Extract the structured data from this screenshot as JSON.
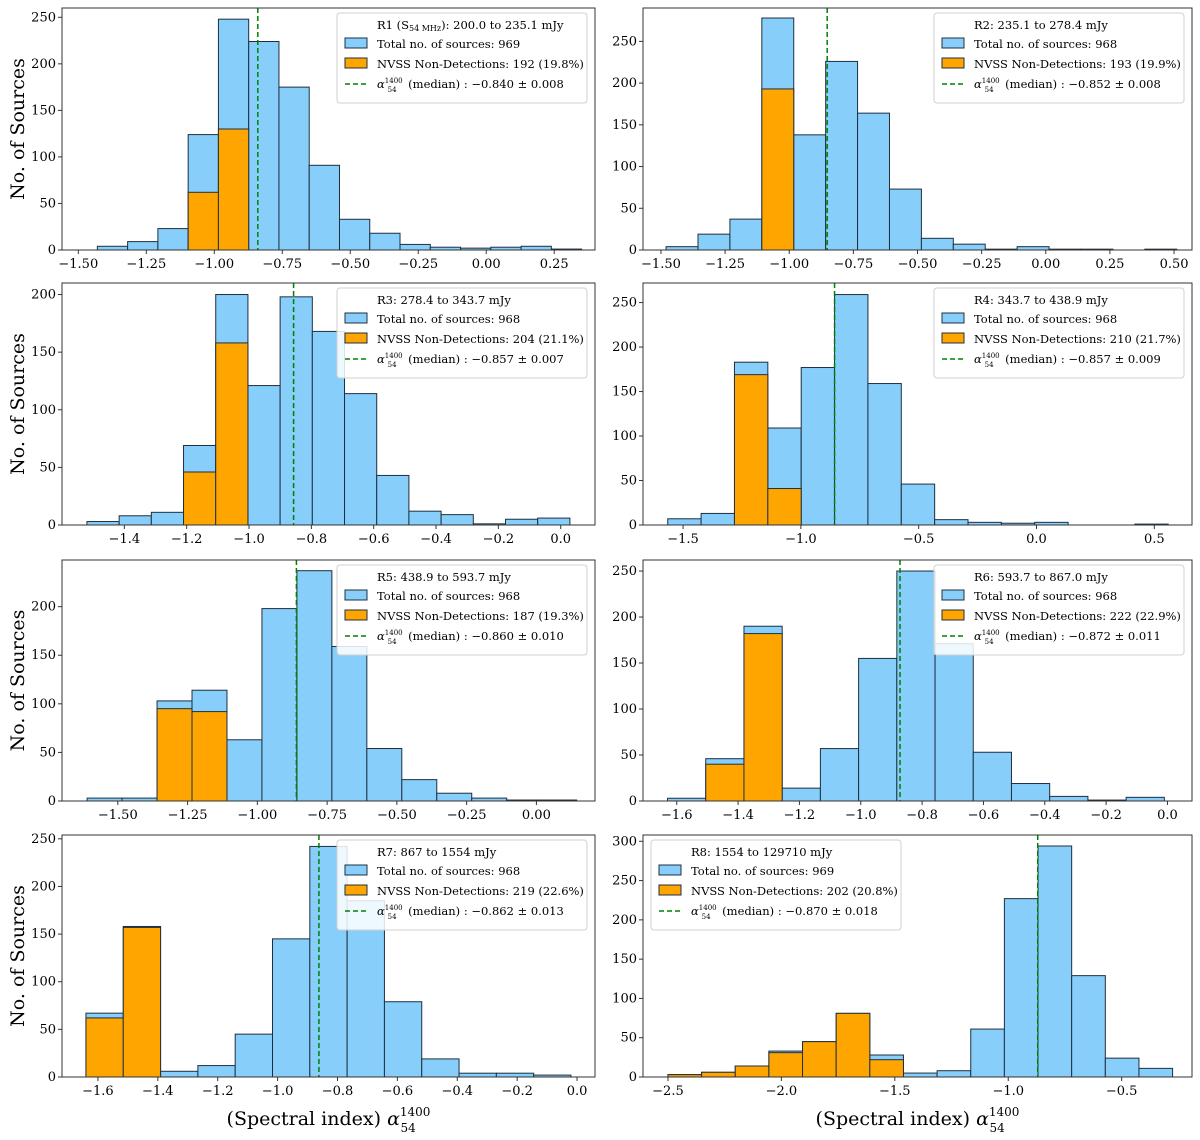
{
  "figure": {
    "ylabel": "No. of Sources",
    "xlabel_main": "(Spectral index) ",
    "xlabel_symbol": "α",
    "xlabel_sup": "1400",
    "xlabel_sub": "54"
  },
  "colors": {
    "total": "#87CEFA",
    "nondetect": "#FFA500",
    "median": "#008000",
    "edge": "#1f2f3f"
  },
  "chart_data": [
    {
      "type": "bar",
      "panel": "R1",
      "title": "R1 (S54 MHz): 200.0 to 235.1 mJy",
      "legend": {
        "title_main": "R1 (S",
        "title_sub": "54 MHz",
        "title_rest": "): 200.0 to 235.1 mJy",
        "total": "Total no. of sources: 969",
        "nondetect": "NVSS Non-Detections: 192 (19.8%)",
        "median_rest": " (median) : −0.840 ± 0.008",
        "position": "top-right"
      },
      "xlim": [
        -1.56,
        0.4
      ],
      "ylim": [
        0,
        260
      ],
      "xticks": [
        -1.5,
        -1.25,
        -1.0,
        -0.75,
        -0.5,
        -0.25,
        0.0,
        0.25
      ],
      "xtick_labels": [
        "−1.50",
        "−1.25",
        "−1.00",
        "−0.75",
        "−0.50",
        "−0.25",
        "0.00",
        "0.25"
      ],
      "yticks": [
        0,
        50,
        100,
        150,
        200,
        250
      ],
      "bin_start": -1.43,
      "bin_width": 0.1113,
      "total": [
        4,
        9,
        23,
        124,
        248,
        224,
        175,
        91,
        33,
        18,
        6,
        3,
        2,
        3,
        4,
        1
      ],
      "nondetect": [
        0,
        0,
        0,
        62,
        130,
        0,
        0,
        0,
        0,
        0,
        0,
        0,
        0,
        0,
        0,
        0
      ],
      "median": -0.84,
      "median_err": 0.008,
      "n_total": 969,
      "n_nondetect": 192,
      "pct_nondetect": 19.8
    },
    {
      "type": "bar",
      "panel": "R2",
      "title": "R2: 235.1 to 278.4 mJy",
      "legend": {
        "title_main": "R2: 235.1 to 278.4 mJy",
        "title_sub": "",
        "title_rest": "",
        "total": "Total no. of sources: 968",
        "nondetect": "NVSS Non-Detections: 193 (19.9%)",
        "median_rest": " (median) : −0.852 ± 0.008",
        "position": "top-right"
      },
      "xlim": [
        -1.57,
        0.57
      ],
      "ylim": [
        0,
        290
      ],
      "xticks": [
        -1.5,
        -1.25,
        -1.0,
        -0.75,
        -0.5,
        -0.25,
        0.0,
        0.25,
        0.5
      ],
      "xtick_labels": [
        "−1.50",
        "−1.25",
        "−1.00",
        "−0.75",
        "−0.50",
        "−0.25",
        "0.00",
        "0.25",
        "0.50"
      ],
      "yticks": [
        0,
        50,
        100,
        150,
        200,
        250
      ],
      "bin_start": -1.48,
      "bin_width": 0.1244,
      "total": [
        4,
        19,
        37,
        278,
        138,
        226,
        164,
        73,
        14,
        7,
        1,
        4,
        1,
        1,
        0,
        1
      ],
      "nondetect": [
        0,
        0,
        0,
        193,
        0,
        0,
        0,
        0,
        0,
        0,
        0,
        0,
        0,
        0,
        0,
        0
      ],
      "median": -0.852,
      "median_err": 0.008,
      "n_total": 968,
      "n_nondetect": 193,
      "pct_nondetect": 19.9
    },
    {
      "type": "bar",
      "panel": "R3",
      "title": "R3: 278.4 to 343.7 mJy",
      "legend": {
        "title_main": "R3: 278.4 to 343.7 mJy",
        "title_sub": "",
        "title_rest": "",
        "total": "Total no. of sources: 968",
        "nondetect": "NVSS Non-Detections: 204 (21.1%)",
        "median_rest": " (median) : −0.857 ± 0.007",
        "position": "top-right"
      },
      "xlim": [
        -1.6,
        0.11
      ],
      "ylim": [
        0,
        210
      ],
      "xticks": [
        -1.4,
        -1.2,
        -1.0,
        -0.8,
        -0.6,
        -0.4,
        -0.2,
        0.0
      ],
      "xtick_labels": [
        "−1.4",
        "−1.2",
        "−1.0",
        "−0.8",
        "−0.6",
        "−0.4",
        "−0.2",
        "0.0"
      ],
      "yticks": [
        0,
        50,
        100,
        150,
        200
      ],
      "bin_start": -1.52,
      "bin_width": 0.1033,
      "total": [
        3,
        8,
        11,
        69,
        200,
        121,
        198,
        168,
        114,
        43,
        12,
        9,
        1,
        5,
        6
      ],
      "nondetect": [
        0,
        0,
        0,
        46,
        158,
        0,
        0,
        0,
        0,
        0,
        0,
        0,
        0,
        0,
        0
      ],
      "median": -0.857,
      "median_err": 0.007,
      "n_total": 968,
      "n_nondetect": 204,
      "pct_nondetect": 21.1
    },
    {
      "type": "bar",
      "panel": "R4",
      "title": "R4: 343.7 to 438.9 mJy",
      "legend": {
        "title_main": "R4: 343.7 to 438.9 mJy",
        "title_sub": "",
        "title_rest": "",
        "total": "Total no. of sources: 968",
        "nondetect": "NVSS Non-Detections: 210 (21.7%)",
        "median_rest": " (median) : −0.857 ± 0.009",
        "position": "top-right"
      },
      "xlim": [
        -1.67,
        0.66
      ],
      "ylim": [
        0,
        272
      ],
      "xticks": [
        -1.5,
        -1.0,
        -0.5,
        0.0,
        0.5
      ],
      "xtick_labels": [
        "−1.5",
        "−1.0",
        "−0.5",
        "0.0",
        "0.5"
      ],
      "yticks": [
        0,
        50,
        100,
        150,
        200,
        250
      ],
      "bin_start": -1.565,
      "bin_width": 0.1416,
      "total": [
        7,
        13,
        183,
        109,
        177,
        259,
        159,
        46,
        6,
        3,
        2,
        3,
        0,
        0,
        1
      ],
      "nondetect": [
        0,
        0,
        169,
        41,
        0,
        0,
        0,
        0,
        0,
        0,
        0,
        0,
        0,
        0,
        0
      ],
      "median": -0.857,
      "median_err": 0.009,
      "n_total": 968,
      "n_nondetect": 210,
      "pct_nondetect": 21.7
    },
    {
      "type": "bar",
      "panel": "R5",
      "title": "R5: 438.9 to 593.7 mJy",
      "legend": {
        "title_main": "R5: 438.9 to 593.7 mJy",
        "title_sub": "",
        "title_rest": "",
        "total": "Total no. of sources: 968",
        "nondetect": "NVSS Non-Detections: 187 (19.3%)",
        "median_rest": " (median) : −0.860 ± 0.010",
        "position": "top-right"
      },
      "xlim": [
        -1.7,
        0.21
      ],
      "ylim": [
        0,
        248
      ],
      "xticks": [
        -1.5,
        -1.25,
        -1.0,
        -0.75,
        -0.5,
        -0.25,
        0.0
      ],
      "xtick_labels": [
        "−1.50",
        "−1.25",
        "−1.00",
        "−0.75",
        "−0.50",
        "−0.25",
        "0.00"
      ],
      "yticks": [
        0,
        50,
        100,
        150,
        200
      ],
      "bin_start": -1.61,
      "bin_width": 0.1253,
      "total": [
        3,
        3,
        103,
        114,
        63,
        198,
        237,
        159,
        54,
        22,
        8,
        3,
        1,
        1
      ],
      "nondetect": [
        0,
        0,
        95,
        92,
        0,
        0,
        0,
        0,
        0,
        0,
        0,
        0,
        0,
        0
      ],
      "median": -0.86,
      "median_err": 0.01,
      "n_total": 968,
      "n_nondetect": 187,
      "pct_nondetect": 19.3
    },
    {
      "type": "bar",
      "panel": "R6",
      "title": "R6: 593.7 to 867.0 mJy",
      "legend": {
        "title_main": "R6: 593.7 to 867.0 mJy",
        "title_sub": "",
        "title_rest": "",
        "total": "Total no. of sources: 968",
        "nondetect": "NVSS Non-Detections: 222 (22.9%)",
        "median_rest": " (median) : −0.872 ± 0.011",
        "position": "top-right"
      },
      "xlim": [
        -1.71,
        0.08
      ],
      "ylim": [
        0,
        262
      ],
      "xticks": [
        -1.6,
        -1.4,
        -1.2,
        -1.0,
        -0.8,
        -0.6,
        -0.4,
        -0.2,
        0.0
      ],
      "xtick_labels": [
        "−1.6",
        "−1.4",
        "−1.2",
        "−1.0",
        "−0.8",
        "−0.6",
        "−0.4",
        "−0.2",
        "0.0"
      ],
      "yticks": [
        0,
        50,
        100,
        150,
        200,
        250
      ],
      "bin_start": -1.63,
      "bin_width": 0.1246,
      "total": [
        3,
        46,
        190,
        14,
        57,
        155,
        250,
        171,
        53,
        19,
        5,
        1,
        4
      ],
      "nondetect": [
        0,
        40,
        182,
        0,
        0,
        0,
        0,
        0,
        0,
        0,
        0,
        0,
        0
      ],
      "median": -0.872,
      "median_err": 0.011,
      "n_total": 968,
      "n_nondetect": 222,
      "pct_nondetect": 22.9
    },
    {
      "type": "bar",
      "panel": "R7",
      "title": "R7: 867 to 1554 mJy",
      "legend": {
        "title_main": "R7: 867 to 1554 mJy",
        "title_sub": "",
        "title_rest": "",
        "total": "Total no. of sources: 968",
        "nondetect": "NVSS Non-Detections: 219 (22.6%)",
        "median_rest": " (median) : −0.862 ± 0.013",
        "position": "top-right"
      },
      "xlim": [
        -1.72,
        0.06
      ],
      "ylim": [
        0,
        254
      ],
      "xticks": [
        -1.6,
        -1.4,
        -1.2,
        -1.0,
        -0.8,
        -0.6,
        -0.4,
        -0.2,
        0.0
      ],
      "xtick_labels": [
        "−1.6",
        "−1.4",
        "−1.2",
        "−1.0",
        "−0.8",
        "−0.6",
        "−0.4",
        "−0.2",
        "0.0"
      ],
      "yticks": [
        0,
        50,
        100,
        150,
        200,
        250
      ],
      "bin_start": -1.64,
      "bin_width": 0.1246,
      "total": [
        67,
        158,
        6,
        12,
        45,
        145,
        242,
        185,
        79,
        19,
        4,
        4,
        2
      ],
      "nondetect": [
        62,
        157,
        0,
        0,
        0,
        0,
        0,
        0,
        0,
        0,
        0,
        0,
        0
      ],
      "median": -0.862,
      "median_err": 0.013,
      "n_total": 968,
      "n_nondetect": 219,
      "pct_nondetect": 22.6
    },
    {
      "type": "bar",
      "panel": "R8",
      "title": "R8: 1554 to 129710 mJy",
      "legend": {
        "title_main": "R8: 1554 to 129710 mJy",
        "title_sub": "",
        "title_rest": "",
        "total": "Total no. of sources: 969",
        "nondetect": "NVSS Non-Detections: 202 (20.8%)",
        "median_rest": " (median) : −0.870 ± 0.018",
        "position": "top-left"
      },
      "xlim": [
        -2.61,
        -0.19
      ],
      "ylim": [
        0,
        308
      ],
      "xticks": [
        -2.5,
        -2.0,
        -1.5,
        -1.0,
        -0.5
      ],
      "xtick_labels": [
        "−2.5",
        "−2.0",
        "−1.5",
        "−1.0",
        "−0.5"
      ],
      "yticks": [
        0,
        50,
        100,
        150,
        200,
        250,
        300
      ],
      "bin_start": -2.5,
      "bin_width": 0.1483,
      "total": [
        3,
        6,
        14,
        33,
        45,
        81,
        28,
        5,
        8,
        61,
        227,
        294,
        129,
        24,
        11
      ],
      "nondetect": [
        3,
        6,
        14,
        31,
        45,
        81,
        22,
        0,
        0,
        0,
        0,
        0,
        0,
        0,
        0
      ],
      "median": -0.87,
      "median_err": 0.018,
      "n_total": 969,
      "n_nondetect": 202,
      "pct_nondetect": 20.8
    }
  ]
}
